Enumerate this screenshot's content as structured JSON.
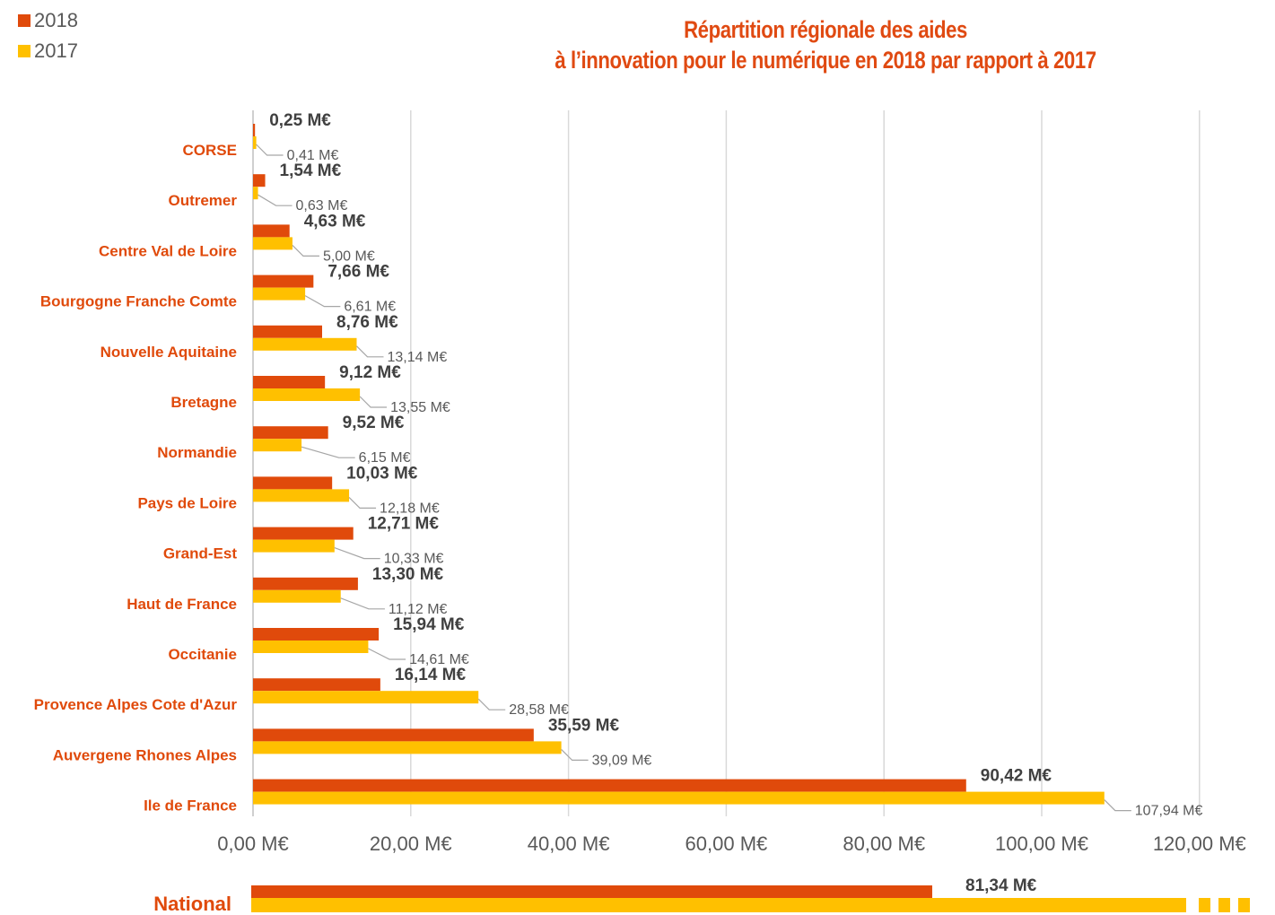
{
  "legend": [
    {
      "label": "2018",
      "color": "#e04a0b"
    },
    {
      "label": "2017",
      "color": "#ffc000"
    }
  ],
  "title": {
    "line1": "Répartition régionale des aides",
    "line2": "à l’innovation pour le numérique en 2018 par rapport à 2017"
  },
  "chart_data": {
    "type": "bar",
    "orientation": "horizontal",
    "categories": [
      "CORSE",
      "Outremer",
      "Centre Val de Loire",
      "Bourgogne Franche Comte",
      "Nouvelle Aquitaine",
      "Bretagne",
      "Normandie",
      "Pays de Loire",
      "Grand-Est",
      "Haut de France",
      "Occitanie",
      "Provence Alpes Cote d'Azur",
      "Auvergene Rhones Alpes",
      "Ile de France"
    ],
    "series": [
      {
        "name": "2018",
        "color": "#e04a0b",
        "values": [
          0.25,
          1.54,
          4.63,
          7.66,
          8.76,
          9.12,
          9.52,
          10.03,
          12.71,
          13.3,
          15.94,
          16.14,
          35.59,
          90.42
        ],
        "labels": [
          "0,25 M€",
          "1,54 M€",
          "4,63 M€",
          "7,66 M€",
          "8,76 M€",
          "9,12 M€",
          "9,52 M€",
          "10,03 M€",
          "12,71 M€",
          "13,30 M€",
          "15,94 M€",
          "16,14 M€",
          "35,59 M€",
          "90,42 M€"
        ]
      },
      {
        "name": "2017",
        "color": "#ffc000",
        "values": [
          0.41,
          0.63,
          5.0,
          6.61,
          13.14,
          13.55,
          6.15,
          12.18,
          10.33,
          11.12,
          14.61,
          28.58,
          39.09,
          107.94
        ],
        "labels": [
          "0,41 M€",
          "0,63 M€",
          "5,00 M€",
          "6,61 M€",
          "13,14 M€",
          "13,55 M€",
          "6,15 M€",
          "12,18 M€",
          "10,33 M€",
          "11,12 M€",
          "14,61 M€",
          "28,58 M€",
          "39,09 M€",
          "107,94 M€"
        ]
      }
    ],
    "xlim": [
      0,
      120
    ],
    "xticks": [
      0,
      20,
      40,
      60,
      80,
      100,
      120
    ],
    "xtick_labels": [
      "0,00 M€",
      "20,00 M€",
      "40,00 M€",
      "60,00 M€",
      "80,00 M€",
      "100,00 M€",
      "120,00 M€"
    ],
    "grid": "vertical",
    "legend_position": "top-left",
    "national": {
      "label": "National",
      "value_2018": 81.34,
      "value_2018_label": "81,34 M€",
      "value_2017_truncated": true
    }
  }
}
